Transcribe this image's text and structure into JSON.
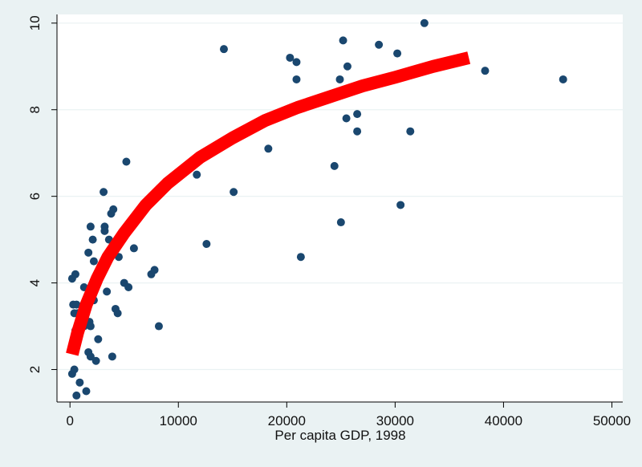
{
  "chart_data": {
    "type": "scatter",
    "title": "",
    "xlabel": "Per capita GDP, 1998",
    "ylabel": "",
    "xlim": [
      -1200,
      51000
    ],
    "ylim": [
      1.25,
      10.2
    ],
    "x_ticks": [
      0,
      10000,
      20000,
      30000,
      40000,
      50000
    ],
    "y_ticks": [
      2,
      4,
      6,
      8,
      10
    ],
    "grid": "horizontal",
    "legend": "none",
    "colors": {
      "background": "#eaf2f3",
      "plot_region": "#ffffff",
      "points": "#1a476f",
      "fit": "#ff0000",
      "grid": "#eaf2f3"
    },
    "series": [
      {
        "type": "scatter",
        "points": [
          [
            200,
            4.1
          ],
          [
            500,
            4.2
          ],
          [
            300,
            3.5
          ],
          [
            600,
            3.5
          ],
          [
            400,
            3.3
          ],
          [
            700,
            3.3
          ],
          [
            500,
            2.9
          ],
          [
            300,
            2.5
          ],
          [
            600,
            2.6
          ],
          [
            200,
            1.9
          ],
          [
            400,
            2.0
          ],
          [
            600,
            1.4
          ],
          [
            900,
            1.7
          ],
          [
            1500,
            1.5
          ],
          [
            1300,
            3.9
          ],
          [
            1500,
            3.4
          ],
          [
            1300,
            3.0
          ],
          [
            1800,
            3.1
          ],
          [
            1900,
            3.0
          ],
          [
            1700,
            2.4
          ],
          [
            1900,
            2.3
          ],
          [
            2400,
            2.2
          ],
          [
            2600,
            2.7
          ],
          [
            1700,
            4.7
          ],
          [
            1900,
            5.3
          ],
          [
            2100,
            5.0
          ],
          [
            2200,
            4.5
          ],
          [
            2200,
            3.6
          ],
          [
            3100,
            6.1
          ],
          [
            3200,
            5.3
          ],
          [
            3200,
            5.2
          ],
          [
            3600,
            5.0
          ],
          [
            3800,
            5.6
          ],
          [
            4000,
            5.7
          ],
          [
            4400,
            4.9
          ],
          [
            4700,
            5.0
          ],
          [
            4500,
            4.6
          ],
          [
            3400,
            3.8
          ],
          [
            4200,
            3.4
          ],
          [
            4400,
            3.3
          ],
          [
            3900,
            2.3
          ],
          [
            5000,
            4.0
          ],
          [
            5400,
            3.9
          ],
          [
            5200,
            6.8
          ],
          [
            5900,
            4.8
          ],
          [
            7500,
            4.2
          ],
          [
            7800,
            4.3
          ],
          [
            8200,
            3.0
          ],
          [
            11700,
            6.5
          ],
          [
            12600,
            4.9
          ],
          [
            14200,
            9.4
          ],
          [
            15100,
            6.1
          ],
          [
            18300,
            7.1
          ],
          [
            20300,
            9.2
          ],
          [
            20900,
            9.1
          ],
          [
            20900,
            8.7
          ],
          [
            21300,
            4.6
          ],
          [
            24400,
            6.7
          ],
          [
            24900,
            8.7
          ],
          [
            25000,
            5.4
          ],
          [
            25200,
            9.6
          ],
          [
            25500,
            7.8
          ],
          [
            25600,
            9.0
          ],
          [
            26500,
            7.9
          ],
          [
            26500,
            7.5
          ],
          [
            28500,
            9.5
          ],
          [
            30200,
            9.3
          ],
          [
            30500,
            5.8
          ],
          [
            31400,
            7.5
          ],
          [
            32700,
            10.0
          ],
          [
            38300,
            8.9
          ],
          [
            45500,
            8.7
          ]
        ]
      },
      {
        "type": "line",
        "points": [
          [
            200,
            2.35
          ],
          [
            700,
            2.85
          ],
          [
            1500,
            3.5
          ],
          [
            2500,
            4.1
          ],
          [
            3500,
            4.6
          ],
          [
            5000,
            5.15
          ],
          [
            7000,
            5.8
          ],
          [
            9000,
            6.3
          ],
          [
            12000,
            6.9
          ],
          [
            15000,
            7.35
          ],
          [
            18000,
            7.75
          ],
          [
            21000,
            8.05
          ],
          [
            24000,
            8.3
          ],
          [
            27000,
            8.55
          ],
          [
            30000,
            8.75
          ],
          [
            33500,
            9.0
          ],
          [
            36800,
            9.2
          ]
        ]
      }
    ]
  }
}
